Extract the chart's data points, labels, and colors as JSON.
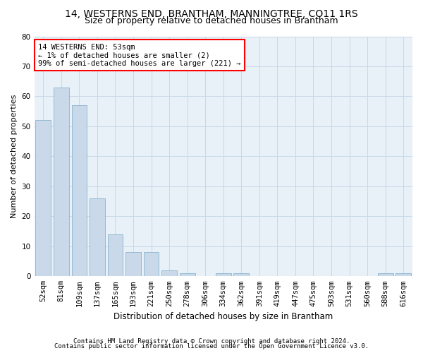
{
  "title1": "14, WESTERNS END, BRANTHAM, MANNINGTREE, CO11 1RS",
  "title2": "Size of property relative to detached houses in Brantham",
  "xlabel": "Distribution of detached houses by size in Brantham",
  "ylabel": "Number of detached properties",
  "categories": [
    "52sqm",
    "81sqm",
    "109sqm",
    "137sqm",
    "165sqm",
    "193sqm",
    "221sqm",
    "250sqm",
    "278sqm",
    "306sqm",
    "334sqm",
    "362sqm",
    "391sqm",
    "419sqm",
    "447sqm",
    "475sqm",
    "503sqm",
    "531sqm",
    "560sqm",
    "588sqm",
    "616sqm"
  ],
  "values": [
    52,
    63,
    57,
    26,
    14,
    8,
    8,
    2,
    1,
    0,
    1,
    1,
    0,
    0,
    0,
    0,
    0,
    0,
    0,
    1,
    1
  ],
  "bar_color": "#c9d9ea",
  "bar_edge_color": "#7aaac8",
  "highlight_box_text": "14 WESTERNS END: 53sqm\n← 1% of detached houses are smaller (2)\n99% of semi-detached houses are larger (221) →",
  "ylim": [
    0,
    80
  ],
  "yticks": [
    0,
    10,
    20,
    30,
    40,
    50,
    60,
    70,
    80
  ],
  "grid_color": "#c8d8e8",
  "background_color": "#e8f0f8",
  "footer1": "Contains HM Land Registry data © Crown copyright and database right 2024.",
  "footer2": "Contains public sector information licensed under the Open Government Licence v3.0.",
  "title1_fontsize": 10,
  "title2_fontsize": 9,
  "xlabel_fontsize": 8.5,
  "ylabel_fontsize": 8,
  "tick_fontsize": 7.5,
  "footer_fontsize": 6.5,
  "annotation_fontsize": 7.5
}
